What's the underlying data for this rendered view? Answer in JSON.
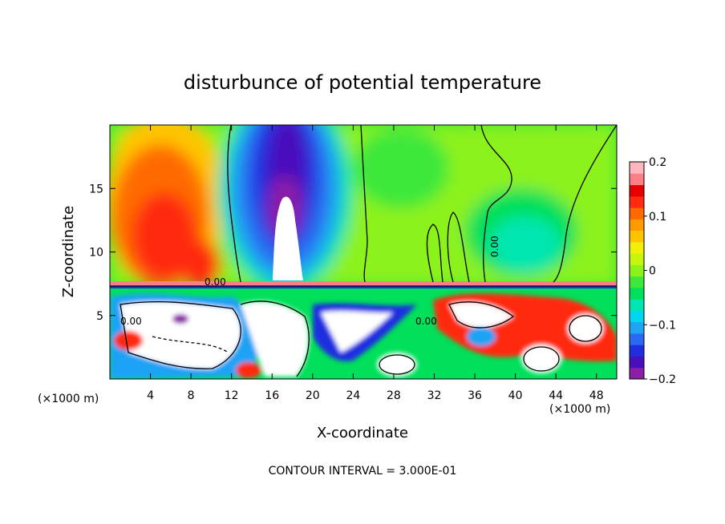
{
  "chart_data": {
    "type": "heatmap",
    "title": "disturbunce of potential temperature",
    "xlabel": "X-coordinate",
    "ylabel": "Z-coordinate",
    "x_unit_left": "(×1000 m)",
    "x_unit_right": "(×1000 m)",
    "footer": "CONTOUR INTERVAL = 3.000E-01",
    "xlim": [
      0,
      50
    ],
    "ylim": [
      0,
      20
    ],
    "x_ticks": [
      4,
      8,
      12,
      16,
      20,
      24,
      28,
      32,
      36,
      40,
      44,
      48
    ],
    "y_ticks": [
      5,
      10,
      15
    ],
    "contour_label": "0.00",
    "colorbar": {
      "range": [
        -0.2,
        0.2
      ],
      "tick_values": [
        0.2,
        0.1,
        0,
        -0.1,
        -0.2
      ],
      "tick_labels": [
        "0.2",
        "0.1",
        "0",
        "−0.1",
        "−0.2"
      ],
      "colors": [
        "#8b1fa8",
        "#4a0fbd",
        "#1f2fe0",
        "#2a6af0",
        "#1ea3f5",
        "#00d7ee",
        "#00e6b0",
        "#00e05a",
        "#3ee83a",
        "#8cf21a",
        "#c8f50e",
        "#f2f00a",
        "#ffc400",
        "#ff9a00",
        "#ff6a00",
        "#ff2a10",
        "#e80000",
        "#ff7f86",
        "#ffb6bc"
      ]
    }
  }
}
